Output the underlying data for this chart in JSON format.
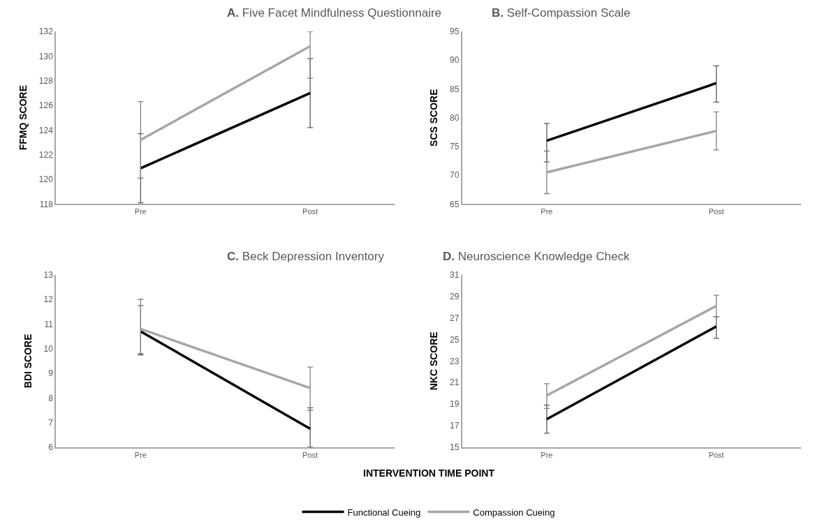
{
  "chart_data": [
    {
      "type": "line",
      "title": "A. Five Facet Mindfulness Questionnaire",
      "ylabel": "FFMQ SCORE",
      "categories": [
        "Pre",
        "Post"
      ],
      "ylim": [
        118,
        132
      ],
      "yticks": [
        118,
        120,
        122,
        124,
        126,
        128,
        130,
        132
      ],
      "grid": false,
      "legend": "bottom",
      "marker": "none",
      "line_style": "solid",
      "series": [
        {
          "name": "Functional Cueing",
          "color": "#000000",
          "values": [
            120.9,
            127.0
          ],
          "errors": [
            [
              118.1,
              123.7
            ],
            [
              124.2,
              129.8
            ]
          ]
        },
        {
          "name": "Compassion Cueing",
          "color": "#a6a6a6",
          "values": [
            123.2,
            130.8
          ],
          "errors": [
            [
              120.1,
              126.3
            ],
            [
              128.2,
              132
            ]
          ]
        }
      ]
    },
    {
      "type": "line",
      "title": "B. Self-Compassion Scale",
      "ylabel": "SCS SCORE",
      "categories": [
        "Pre",
        "Post"
      ],
      "ylim": [
        65,
        95
      ],
      "yticks": [
        65,
        70,
        75,
        80,
        85,
        90,
        95
      ],
      "grid": false,
      "marker": "none",
      "line_style": "solid",
      "series": [
        {
          "color": "#000000",
          "values": [
            76.0,
            86.0
          ],
          "errors": [
            [
              72.3,
              79.0
            ],
            [
              82.7,
              89.0
            ]
          ]
        },
        {
          "color": "#a6a6a6",
          "values": [
            70.5,
            77.7
          ],
          "errors": [
            [
              66.8,
              74.2
            ],
            [
              74.4,
              81.0
            ]
          ]
        }
      ]
    },
    {
      "type": "line",
      "title": "C. Beck Depression Inventory",
      "ylabel": "BDI SCORE",
      "xlabel": "INTERVENTION TIME POINT",
      "categories": [
        "Pre",
        "Post"
      ],
      "ylim": [
        6,
        13
      ],
      "yticks": [
        6,
        7,
        8,
        9,
        10,
        11,
        12,
        13
      ],
      "grid": false,
      "marker": "none",
      "line_style": "solid",
      "series": [
        {
          "color": "#000000",
          "values": [
            10.7,
            6.75
          ],
          "errors": [
            [
              9.75,
              11.75
            ],
            [
              6.0,
              7.6
            ]
          ]
        },
        {
          "color": "#a6a6a6",
          "values": [
            10.8,
            8.4
          ],
          "errors": [
            [
              9.8,
              12.0
            ],
            [
              7.5,
              9.25
            ]
          ]
        }
      ]
    },
    {
      "type": "line",
      "title": "D. Neuroscience Knowledge Check",
      "ylabel": "NKC SCORE",
      "categories": [
        "Pre",
        "Post"
      ],
      "ylim": [
        15,
        31
      ],
      "yticks": [
        15,
        17,
        19,
        21,
        23,
        25,
        27,
        29,
        31
      ],
      "grid": false,
      "marker": "none",
      "line_style": "solid",
      "series": [
        {
          "color": "#000000",
          "values": [
            17.6,
            26.2
          ],
          "errors": [
            [
              16.3,
              18.9
            ],
            [
              25.1,
              27.1
            ]
          ]
        },
        {
          "color": "#a6a6a6",
          "values": [
            19.8,
            28.1
          ],
          "errors": [
            [
              18.6,
              20.9
            ],
            [
              27.1,
              29.1
            ]
          ]
        }
      ]
    }
  ]
}
